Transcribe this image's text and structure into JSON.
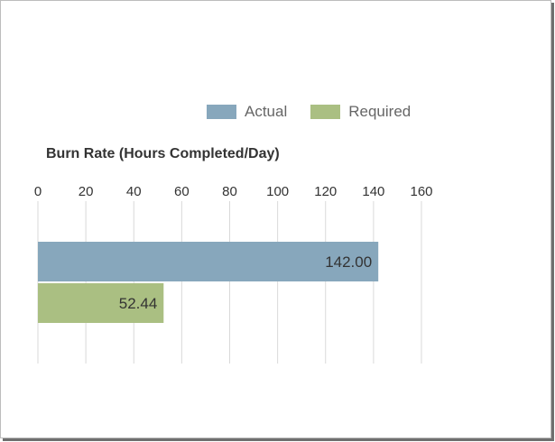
{
  "chart_data": {
    "type": "bar",
    "orientation": "horizontal",
    "title": "Burn Rate (Hours Completed/Day)",
    "xlabel": "",
    "ylabel": "",
    "xlim": [
      0,
      160
    ],
    "ticks": [
      0,
      20,
      40,
      60,
      80,
      100,
      120,
      140,
      160
    ],
    "grid": true,
    "legend_position": "top",
    "series": [
      {
        "name": "Actual",
        "value": 142.0,
        "label": "142.00",
        "color": "#87a7bc"
      },
      {
        "name": "Required",
        "value": 52.44,
        "label": "52.44",
        "color": "#aabf82"
      }
    ]
  }
}
